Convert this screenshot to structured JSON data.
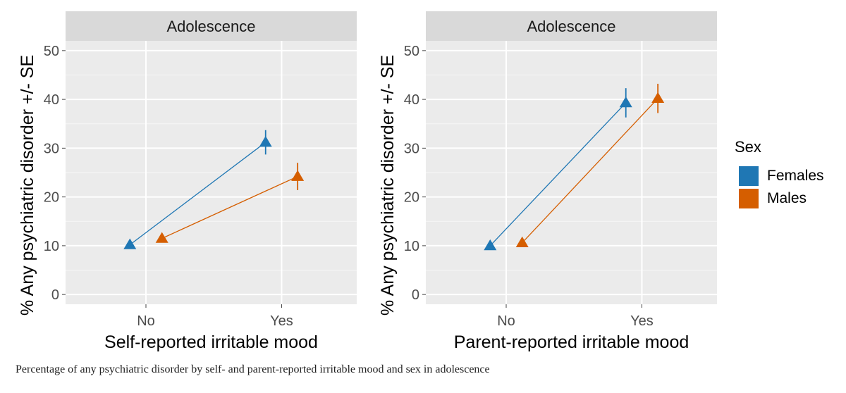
{
  "caption": "Percentage of any psychiatric disorder by self- and parent-reported irritable mood and sex in adolescence",
  "legend": {
    "title": "Sex",
    "items": [
      {
        "label": "Females",
        "color": "#1f77b4"
      },
      {
        "label": "Males",
        "color": "#d55e00"
      }
    ]
  },
  "chart_data": [
    {
      "type": "scatter",
      "facet_title": "Adolescence",
      "xlabel": "Self-reported irritable mood",
      "ylabel": "% Any psychiatric disorder +/- SE",
      "categories": [
        "No",
        "Yes"
      ],
      "yticks": [
        0,
        10,
        20,
        30,
        40,
        50
      ],
      "ylim": [
        -2,
        52
      ],
      "grid": true,
      "series": [
        {
          "name": "Females",
          "color": "#1f77b4",
          "values": [
            10.2,
            31.2
          ],
          "se": [
            0.8,
            2.5
          ]
        },
        {
          "name": "Males",
          "color": "#d55e00",
          "values": [
            11.5,
            24.2
          ],
          "se": [
            0.8,
            2.8
          ]
        }
      ]
    },
    {
      "type": "scatter",
      "facet_title": "Adolescence",
      "xlabel": "Parent-reported irritable mood",
      "ylabel": "% Any psychiatric disorder +/- SE",
      "categories": [
        "No",
        "Yes"
      ],
      "yticks": [
        0,
        10,
        20,
        30,
        40,
        50
      ],
      "ylim": [
        -2,
        52
      ],
      "grid": true,
      "series": [
        {
          "name": "Females",
          "color": "#1f77b4",
          "values": [
            10.0,
            39.3
          ],
          "se": [
            0.8,
            3.0
          ]
        },
        {
          "name": "Males",
          "color": "#d55e00",
          "values": [
            10.6,
            40.2
          ],
          "se": [
            0.8,
            3.0
          ]
        }
      ]
    }
  ]
}
